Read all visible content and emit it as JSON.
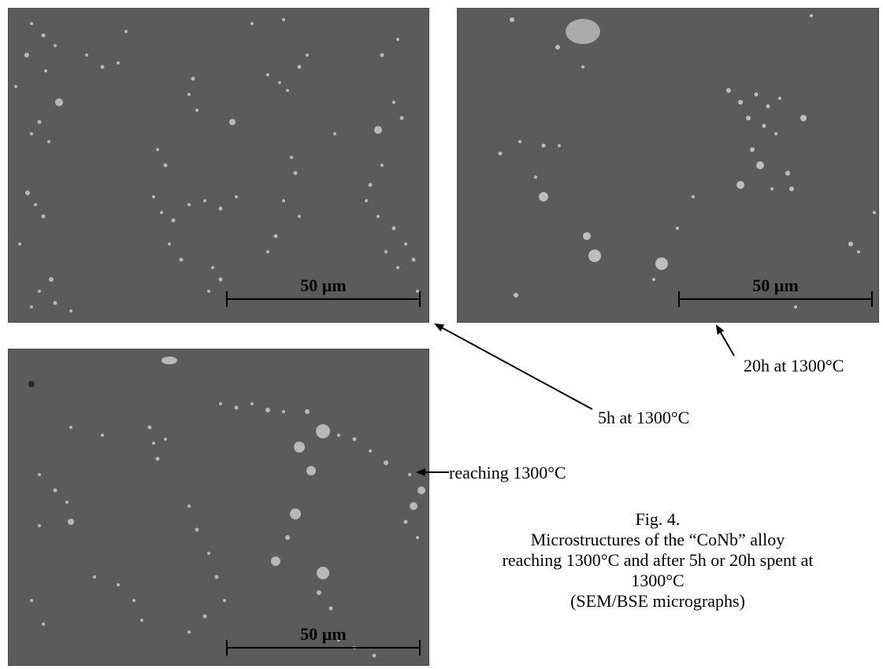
{
  "panels": [
    {
      "id": "5h",
      "scale_label": "50 µm"
    },
    {
      "id": "20h",
      "scale_label": "50 µm"
    },
    {
      "id": "reaching",
      "scale_label": "50 µm"
    }
  ],
  "annotations": {
    "label_20h": "20h at 1300°C",
    "label_5h": "5h at 1300°C",
    "label_reaching": "reaching 1300°C"
  },
  "caption": {
    "fig_number": "Fig. 4.",
    "line1": "Microstructures of the “CoNb” alloy",
    "line2": "reaching 1300°C and after 5h or 20h spent at",
    "line3": "1300°C",
    "line4": "(SEM/BSE micrographs)"
  },
  "colors": {
    "matrix_gray": "#5b5b5b",
    "particle_light": "#c8c8c8",
    "text": "#000000"
  }
}
